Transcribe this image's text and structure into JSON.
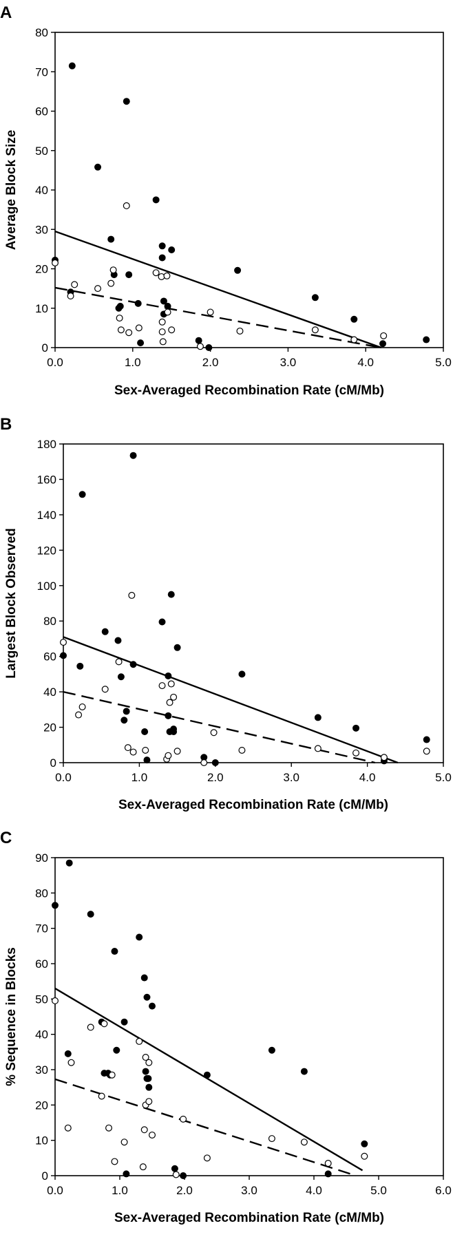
{
  "chart_data": [
    {
      "panel": "A",
      "type": "scatter",
      "xlabel": "Sex-Averaged Recombination Rate (cM/Mb)",
      "ylabel": "Average Block Size",
      "xlim": [
        0,
        5
      ],
      "ylim": [
        0,
        80
      ],
      "x_ticks": [
        "0.0",
        "1.0",
        "2.0",
        "3.0",
        "4.0",
        "5.0"
      ],
      "y_ticks": [
        "0",
        "10",
        "20",
        "30",
        "40",
        "50",
        "60",
        "70",
        "80"
      ],
      "series": [
        {
          "marker": "filled",
          "points": [
            [
              0.0,
              22.2
            ],
            [
              0.2,
              14.1
            ],
            [
              0.22,
              71.5
            ],
            [
              0.55,
              45.8
            ],
            [
              0.72,
              27.5
            ],
            [
              0.76,
              18.5
            ],
            [
              0.82,
              10.0
            ],
            [
              0.84,
              10.5
            ],
            [
              0.92,
              62.5
            ],
            [
              0.95,
              18.5
            ],
            [
              1.07,
              11.2
            ],
            [
              1.1,
              1.2
            ],
            [
              1.3,
              37.5
            ],
            [
              1.38,
              25.8
            ],
            [
              1.38,
              22.8
            ],
            [
              1.4,
              11.8
            ],
            [
              1.4,
              8.5
            ],
            [
              1.45,
              10.5
            ],
            [
              1.5,
              24.8
            ],
            [
              1.85,
              1.8
            ],
            [
              1.98,
              0.0
            ],
            [
              2.35,
              19.6
            ],
            [
              3.35,
              12.7
            ],
            [
              3.85,
              7.2
            ],
            [
              4.22,
              1.0
            ],
            [
              4.78,
              2.0
            ]
          ]
        },
        {
          "marker": "open",
          "points": [
            [
              0.0,
              21.5
            ],
            [
              0.2,
              13.1
            ],
            [
              0.25,
              16.0
            ],
            [
              0.55,
              15.0
            ],
            [
              0.72,
              16.3
            ],
            [
              0.75,
              19.7
            ],
            [
              0.83,
              7.5
            ],
            [
              0.85,
              4.5
            ],
            [
              0.92,
              36.0
            ],
            [
              0.95,
              3.8
            ],
            [
              1.08,
              5.0
            ],
            [
              1.3,
              19.0
            ],
            [
              1.37,
              18.0
            ],
            [
              1.38,
              6.5
            ],
            [
              1.38,
              4.0
            ],
            [
              1.39,
              1.5
            ],
            [
              1.44,
              18.2
            ],
            [
              1.45,
              9.0
            ],
            [
              1.5,
              4.5
            ],
            [
              1.87,
              0.3
            ],
            [
              2.0,
              9.0
            ],
            [
              2.38,
              4.2
            ],
            [
              3.35,
              4.5
            ],
            [
              3.85,
              2.0
            ],
            [
              4.23,
              3.0
            ]
          ]
        }
      ],
      "trend_lines": [
        {
          "style": "solid",
          "points": [
            [
              0,
              29.5
            ],
            [
              4.2,
              0
            ]
          ]
        },
        {
          "style": "dashed",
          "points": [
            [
              0,
              15.2
            ],
            [
              4.2,
              0
            ]
          ]
        }
      ]
    },
    {
      "panel": "B",
      "type": "scatter",
      "xlabel": "Sex-Averaged Recombination Rate (cM/Mb)",
      "ylabel": "Largest Block Observed",
      "xlim": [
        0,
        5
      ],
      "ylim": [
        0,
        180
      ],
      "x_ticks": [
        "0.0",
        "1.0",
        "2.0",
        "3.0",
        "4.0",
        "5.0"
      ],
      "y_ticks": [
        "0",
        "20",
        "40",
        "60",
        "80",
        "100",
        "120",
        "140",
        "160",
        "180"
      ],
      "series": [
        {
          "marker": "filled",
          "points": [
            [
              0.0,
              60.5
            ],
            [
              0.22,
              54.5
            ],
            [
              0.25,
              151.5
            ],
            [
              0.55,
              74.0
            ],
            [
              0.72,
              69.0
            ],
            [
              0.76,
              48.5
            ],
            [
              0.8,
              24.0
            ],
            [
              0.83,
              29.0
            ],
            [
              0.92,
              55.5
            ],
            [
              0.92,
              173.5
            ],
            [
              1.07,
              17.5
            ],
            [
              1.1,
              1.5
            ],
            [
              1.3,
              79.5
            ],
            [
              1.38,
              49.0
            ],
            [
              1.38,
              26.5
            ],
            [
              1.4,
              17.5
            ],
            [
              1.42,
              95.0
            ],
            [
              1.45,
              19.0
            ],
            [
              1.45,
              17.5
            ],
            [
              1.5,
              65.0
            ],
            [
              1.85,
              3.0
            ],
            [
              2.0,
              0.0
            ],
            [
              2.35,
              50.0
            ],
            [
              3.35,
              25.5
            ],
            [
              3.85,
              19.5
            ],
            [
              4.22,
              1.0
            ],
            [
              4.78,
              13.0
            ]
          ]
        },
        {
          "marker": "open",
          "points": [
            [
              0.0,
              68.0
            ],
            [
              0.2,
              27.0
            ],
            [
              0.25,
              31.5
            ],
            [
              0.55,
              41.5
            ],
            [
              0.73,
              57.0
            ],
            [
              0.85,
              8.5
            ],
            [
              0.9,
              94.5
            ],
            [
              0.92,
              6.0
            ],
            [
              1.08,
              7.0
            ],
            [
              1.3,
              43.5
            ],
            [
              1.36,
              2.0
            ],
            [
              1.38,
              4.0
            ],
            [
              1.4,
              34.0
            ],
            [
              1.42,
              44.5
            ],
            [
              1.45,
              37.0
            ],
            [
              1.5,
              6.5
            ],
            [
              1.85,
              0.0
            ],
            [
              1.98,
              17.0
            ],
            [
              2.35,
              7.0
            ],
            [
              3.35,
              8.0
            ],
            [
              3.85,
              5.5
            ],
            [
              4.22,
              3.0
            ],
            [
              4.78,
              6.5
            ]
          ]
        }
      ],
      "trend_lines": [
        {
          "style": "solid",
          "points": [
            [
              0,
              71.0
            ],
            [
              4.4,
              0
            ]
          ]
        },
        {
          "style": "dashed",
          "points": [
            [
              0,
              40.0
            ],
            [
              4.1,
              0
            ]
          ]
        }
      ]
    },
    {
      "panel": "C",
      "type": "scatter",
      "xlabel": "Sex-Averaged Recombination Rate (cM/Mb)",
      "ylabel": "% Sequence in Blocks",
      "xlim": [
        0,
        6
      ],
      "ylim": [
        0,
        90
      ],
      "x_ticks": [
        "0.0",
        "1.0",
        "2.0",
        "3.0",
        "4.0",
        "5.0",
        "6.0"
      ],
      "y_ticks": [
        "0",
        "10",
        "20",
        "30",
        "40",
        "50",
        "60",
        "70",
        "80",
        "90"
      ],
      "series": [
        {
          "marker": "filled",
          "points": [
            [
              0.0,
              76.5
            ],
            [
              0.2,
              34.5
            ],
            [
              0.22,
              88.5
            ],
            [
              0.55,
              74.0
            ],
            [
              0.72,
              43.5
            ],
            [
              0.76,
              29.0
            ],
            [
              0.82,
              29.0
            ],
            [
              0.85,
              28.5
            ],
            [
              0.92,
              63.5
            ],
            [
              0.95,
              35.5
            ],
            [
              1.07,
              43.5
            ],
            [
              1.1,
              0.5
            ],
            [
              1.3,
              67.5
            ],
            [
              1.38,
              56.0
            ],
            [
              1.4,
              29.5
            ],
            [
              1.42,
              50.5
            ],
            [
              1.42,
              27.5
            ],
            [
              1.44,
              27.5
            ],
            [
              1.45,
              25.0
            ],
            [
              1.5,
              48.0
            ],
            [
              1.85,
              2.0
            ],
            [
              1.98,
              0.0
            ],
            [
              2.35,
              28.5
            ],
            [
              3.35,
              35.5
            ],
            [
              3.85,
              29.5
            ],
            [
              4.22,
              0.5
            ],
            [
              4.78,
              9.0
            ]
          ]
        },
        {
          "marker": "open",
          "points": [
            [
              0.0,
              49.5
            ],
            [
              0.2,
              13.5
            ],
            [
              0.25,
              32.0
            ],
            [
              0.55,
              42.0
            ],
            [
              0.72,
              22.5
            ],
            [
              0.76,
              43.0
            ],
            [
              0.83,
              13.5
            ],
            [
              0.88,
              28.5
            ],
            [
              0.92,
              4.0
            ],
            [
              1.07,
              9.5
            ],
            [
              1.3,
              38.0
            ],
            [
              1.36,
              2.5
            ],
            [
              1.38,
              13.0
            ],
            [
              1.4,
              33.5
            ],
            [
              1.4,
              20.0
            ],
            [
              1.45,
              21.0
            ],
            [
              1.45,
              32.0
            ],
            [
              1.5,
              11.5
            ],
            [
              1.87,
              0.3
            ],
            [
              1.98,
              16.0
            ],
            [
              2.35,
              5.0
            ],
            [
              3.35,
              10.5
            ],
            [
              3.85,
              9.5
            ],
            [
              4.22,
              3.5
            ],
            [
              4.78,
              5.5
            ]
          ]
        }
      ],
      "trend_lines": [
        {
          "style": "solid",
          "points": [
            [
              0,
              53.0
            ],
            [
              4.75,
              1.5
            ]
          ]
        },
        {
          "style": "dashed",
          "points": [
            [
              0,
              27.3
            ],
            [
              4.65,
              0
            ]
          ]
        }
      ]
    }
  ]
}
